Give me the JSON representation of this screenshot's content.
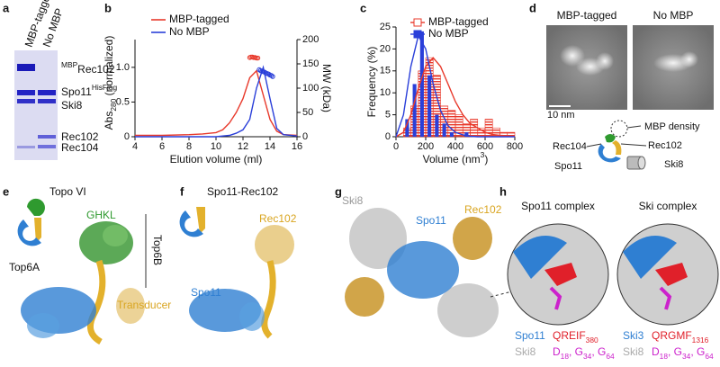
{
  "panel_a": {
    "letter": "a",
    "lanes": [
      "MBP-tagged",
      "No MBP"
    ],
    "bands": [
      [
        {
          "sup": "MBP"
        },
        {
          "text": "Rec102"
        }
      ],
      [
        {
          "text": "Spo11"
        },
        {
          "sup": "HisFlag"
        }
      ],
      [
        {
          "text": "Ski8"
        }
      ],
      [
        {
          "text": "Rec102"
        }
      ],
      [
        {
          "text": "Rec104"
        }
      ]
    ]
  },
  "chart_data": [
    {
      "type": "line",
      "panel": "b",
      "xlabel": "Elution volume (ml)",
      "ylabel": [
        {
          "text": "Abs"
        },
        {
          "sub": "280"
        },
        {
          "text": " (normalized)"
        }
      ],
      "y2label": "MW (kDa)",
      "xlim": [
        4,
        16
      ],
      "xticks": [
        4,
        6,
        8,
        10,
        12,
        14,
        16
      ],
      "ylim": [
        0,
        1.4
      ],
      "yticks": [
        0,
        0.5,
        {
          "value": 1,
          "label": "1.0"
        }
      ],
      "y2lim": [
        0,
        200
      ],
      "y2ticks": [
        0,
        50,
        100,
        150,
        200
      ],
      "series": [
        {
          "name": "MBP-tagged",
          "color": "#e8392b",
          "mode": "line",
          "x": [
            4,
            6,
            8,
            9,
            10,
            10.5,
            11,
            11.5,
            12,
            12.5,
            13,
            13.5,
            14,
            14.5,
            15,
            16
          ],
          "values": [
            0.02,
            0.02,
            0.03,
            0.04,
            0.06,
            0.1,
            0.2,
            0.35,
            0.55,
            0.85,
            0.95,
            0.6,
            0.25,
            0.08,
            0.03,
            0.02
          ]
        },
        {
          "name": "No MBP",
          "color": "#2a3fd9",
          "mode": "line",
          "x": [
            4,
            6,
            8,
            9,
            10,
            10.5,
            11,
            11.5,
            12,
            12.5,
            13,
            13.5,
            14,
            14.5,
            15,
            16
          ],
          "values": [
            0,
            0,
            0,
            0,
            0,
            0.01,
            0.02,
            0.05,
            0.1,
            0.25,
            0.7,
            1.0,
            0.55,
            0.12,
            0.03,
            0.01
          ]
        },
        {
          "color": "#e8392b",
          "mode": "marker",
          "axis": "y2",
          "x": [
            12.5,
            12.6,
            12.7,
            12.8,
            12.9,
            13.0,
            13.1
          ],
          "values": [
            163,
            164,
            164,
            163,
            163,
            162,
            162
          ]
        },
        {
          "color": "#2a3fd9",
          "mode": "marker",
          "axis": "y2",
          "x": [
            13.2,
            13.3,
            13.4,
            13.5,
            13.6,
            13.7,
            13.8,
            13.9,
            14.0,
            14.1,
            14.2
          ],
          "values": [
            138,
            136,
            135,
            134,
            133,
            131,
            130,
            129,
            127,
            126,
            124
          ]
        }
      ]
    },
    {
      "type": "histogram",
      "panel": "c",
      "xlabel": [
        {
          "text": "Volume (nm"
        },
        {
          "sup": "3"
        },
        {
          "text": ")"
        }
      ],
      "ylabel": "Frequency (%)",
      "xlim": [
        0,
        800
      ],
      "xticks": [
        0,
        200,
        400,
        600,
        800
      ],
      "ylim": [
        0,
        25
      ],
      "yticks": [
        0,
        5,
        10,
        15,
        20,
        25
      ],
      "series": [
        {
          "name": "MBP-tagged",
          "color": "#e8392b",
          "hatch": true,
          "bins": [
            50,
            100,
            150,
            200,
            250,
            300,
            350,
            400,
            450,
            500,
            550,
            600,
            650,
            700,
            750,
            800
          ],
          "values": [
            2,
            7,
            15,
            18,
            14,
            7,
            6,
            5,
            3,
            4,
            2,
            4,
            2,
            1,
            1
          ]
        },
        {
          "name": "No MBP",
          "color": "#2a3fd9",
          "hatch": false,
          "bins": [
            50,
            100,
            150,
            200,
            250,
            300,
            350,
            400,
            450,
            500
          ],
          "values": [
            4,
            12,
            24,
            14,
            5,
            3,
            1,
            0,
            1
          ]
        },
        {
          "color": "#e8392b",
          "x": [
            0,
            50,
            100,
            150,
            200,
            250,
            300,
            350,
            400,
            450,
            500,
            550,
            600,
            650,
            700,
            750,
            800
          ],
          "values": [
            0,
            1,
            5,
            11,
            16,
            18,
            16,
            12,
            8,
            5,
            3,
            2,
            1,
            0.5,
            0.3,
            0.2,
            0.1
          ]
        },
        {
          "color": "#2a3fd9",
          "x": [
            0,
            50,
            100,
            150,
            200,
            250,
            300,
            350,
            400,
            450,
            500,
            550,
            600,
            650,
            700,
            750,
            800
          ],
          "values": [
            0,
            5,
            16,
            23,
            20,
            12,
            6,
            2.5,
            1,
            0.4,
            0.1,
            0,
            0,
            0,
            0,
            0,
            0
          ]
        }
      ]
    }
  ],
  "panel_d": {
    "letter": "d",
    "images": [
      "MBP-tagged",
      "No MBP"
    ],
    "scale": "10 nm",
    "density": "MBP density",
    "parts": [
      "Rec104",
      "Rec102",
      "Spo11",
      "Ski8"
    ]
  },
  "panel_e": {
    "letter": "e",
    "title": "Topo VI",
    "labels": [
      "GHKL",
      "Top6B",
      "Top6A",
      "Transducer"
    ]
  },
  "panel_f": {
    "letter": "f",
    "title": "Spo11-Rec102",
    "labels": [
      "Rec102",
      "Spo11"
    ]
  },
  "panel_g": {
    "letter": "g",
    "labels": [
      "Ski8",
      "Spo11",
      "Rec102"
    ]
  },
  "panel_h": {
    "letter": "h",
    "titles": [
      "Spo11 complex",
      "Ski complex"
    ],
    "legend": [
      [
        [
          {
            "text": "Spo11"
          }
        ],
        [
          {
            "text": "QREIF"
          },
          {
            "sub": "380"
          }
        ],
        [
          {
            "text": "Ski8"
          }
        ],
        [
          {
            "text": "D"
          },
          {
            "sub": "18"
          },
          {
            "text": ", G"
          },
          {
            "sub": "34"
          },
          {
            "text": ", G"
          },
          {
            "sub": "64"
          }
        ]
      ],
      [
        [
          {
            "text": "Ski3"
          }
        ],
        [
          {
            "text": "QRGMF"
          },
          {
            "sub": "1316"
          }
        ],
        [
          {
            "text": "Ski8"
          }
        ],
        [
          {
            "text": "D"
          },
          {
            "sub": "18"
          },
          {
            "text": ", G"
          },
          {
            "sub": "34"
          },
          {
            "text": ", G"
          },
          {
            "sub": "64"
          }
        ]
      ]
    ]
  }
}
